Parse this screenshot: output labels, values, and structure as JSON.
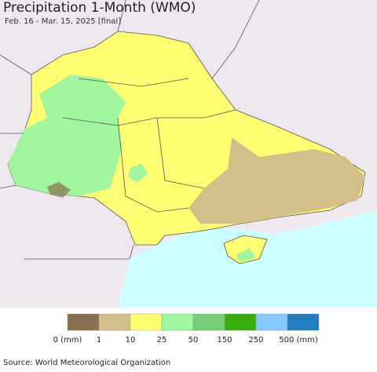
{
  "header": {
    "title": "Precipitation 1-Month (WMO)",
    "subtitle": "Feb. 16 - Mar. 15, 2025 [final]"
  },
  "legend": {
    "items": [
      {
        "label": "0 (mm)",
        "color": "#85704f"
      },
      {
        "label": "1",
        "color": "#d2bf8a"
      },
      {
        "label": "10",
        "color": "#ffff73"
      },
      {
        "label": "25",
        "color": "#a0f59e"
      },
      {
        "label": "50",
        "color": "#78cd78"
      },
      {
        "label": "150",
        "color": "#38ad0c"
      },
      {
        "label": "250",
        "color": "#86c9ff"
      },
      {
        "label": "500 (mm)",
        "color": "#1f7dc0"
      }
    ]
  },
  "footer": {
    "source": "Source: World Meteorological Organization"
  }
}
